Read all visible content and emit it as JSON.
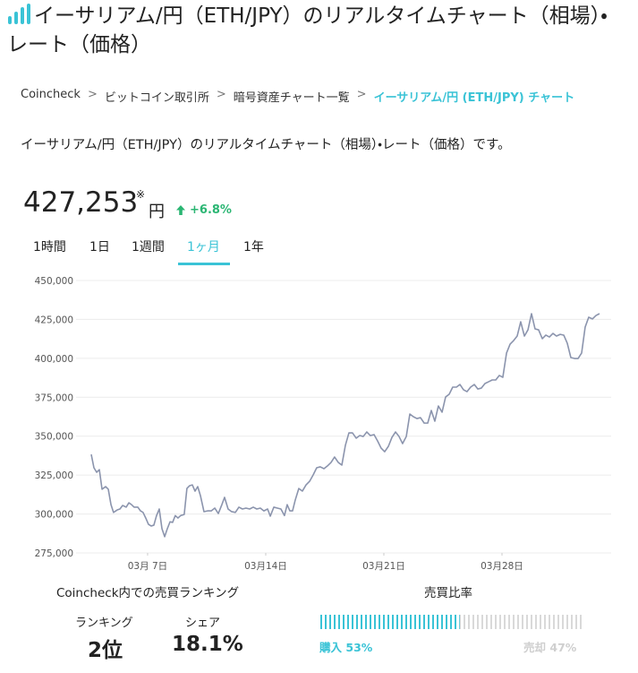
{
  "header": {
    "title": "イーサリアム/円（ETH/JPY）のリアルタイムチャート（相場）・レート（価格）"
  },
  "breadcrumb": {
    "separator": ">",
    "items": [
      "Coincheck",
      "ビットコイン取引所",
      "暗号資産チャート一覧",
      "イーサリアム/円 (ETH/JPY) チャート"
    ]
  },
  "description": "イーサリアム/円（ETH/JPY）のリアルタイムチャート（相場）・レート（価格）です。",
  "price": {
    "value": "427,253",
    "note_mark": "※",
    "unit": "円",
    "change": "+6.8%"
  },
  "tabs": {
    "items": [
      "1時間",
      "1日",
      "1週間",
      "1ヶ月",
      "1年"
    ],
    "active": 3
  },
  "chart_data": {
    "type": "line",
    "color": "#8b94ad",
    "grid": true,
    "xlim": [
      2.76,
      34.47
    ],
    "ylim": [
      275000,
      450000
    ],
    "xticks": [
      {
        "value": 7,
        "label": "03月 7日"
      },
      {
        "value": 14,
        "label": "03月14日"
      },
      {
        "value": 21,
        "label": "03月21日"
      },
      {
        "value": 28,
        "label": "03月28日"
      }
    ],
    "yticks": [
      {
        "value": 275000,
        "label": "275,000"
      },
      {
        "value": 300000,
        "label": "300,000"
      },
      {
        "value": 325000,
        "label": "325,000"
      },
      {
        "value": 350000,
        "label": "350,000"
      },
      {
        "value": 375000,
        "label": "375,000"
      },
      {
        "value": 400000,
        "label": "400,000"
      },
      {
        "value": 425000,
        "label": "425,000"
      },
      {
        "value": 450000,
        "label": "450,000"
      }
    ],
    "x": [
      3.66,
      3.82,
      3.98,
      4.14,
      4.3,
      4.51,
      4.67,
      4.83,
      4.98,
      5.2,
      5.36,
      5.52,
      5.73,
      5.89,
      6.05,
      6.2,
      6.42,
      6.58,
      6.73,
      6.89,
      7.05,
      7.21,
      7.37,
      7.53,
      7.69,
      7.85,
      8.01,
      8.17,
      8.33,
      8.48,
      8.64,
      8.8,
      8.96,
      9.17,
      9.33,
      9.49,
      9.65,
      9.81,
      9.97,
      10.13,
      10.34,
      10.55,
      10.77,
      10.98,
      11.19,
      11.4,
      11.56,
      11.77,
      11.98,
      12.2,
      12.41,
      12.62,
      12.83,
      13.05,
      13.26,
      13.47,
      13.68,
      13.89,
      14.11,
      14.27,
      14.48,
      14.69,
      14.9,
      15.11,
      15.27,
      15.43,
      15.59,
      15.75,
      15.96,
      16.17,
      16.39,
      16.6,
      16.81,
      17.02,
      17.23,
      17.45,
      17.66,
      17.87,
      18.08,
      18.3,
      18.51,
      18.72,
      18.93,
      19.14,
      19.36,
      19.57,
      19.78,
      19.99,
      20.2,
      20.42,
      20.63,
      20.84,
      21.05,
      21.27,
      21.48,
      21.69,
      21.9,
      22.11,
      22.33,
      22.54,
      22.75,
      22.96,
      23.17,
      23.39,
      23.6,
      23.81,
      24.02,
      24.23,
      24.45,
      24.66,
      24.87,
      25.08,
      25.3,
      25.51,
      25.72,
      25.93,
      26.14,
      26.36,
      26.57,
      26.78,
      26.99,
      27.2,
      27.42,
      27.63,
      27.84,
      28.05,
      28.27,
      28.48,
      28.69,
      28.9,
      29.11,
      29.33,
      29.54,
      29.75,
      29.96,
      30.17,
      30.39,
      30.6,
      30.81,
      31.02,
      31.23,
      31.45,
      31.66,
      31.87,
      32.08,
      32.3,
      32.51,
      32.72,
      32.93,
      33.14,
      33.36,
      33.57,
      33.78
    ],
    "values": [
      338300,
      329700,
      326800,
      328500,
      315900,
      317600,
      315900,
      306000,
      301000,
      302600,
      303200,
      305500,
      304400,
      307200,
      306000,
      304400,
      304400,
      302000,
      301000,
      297400,
      293400,
      292300,
      292800,
      299000,
      303200,
      290600,
      285400,
      290600,
      295000,
      294600,
      299000,
      297400,
      299000,
      299700,
      316400,
      318200,
      318700,
      314700,
      317600,
      311800,
      301500,
      302000,
      302000,
      303800,
      300300,
      306000,
      310700,
      303200,
      301500,
      301000,
      304400,
      303200,
      303800,
      303200,
      304400,
      303200,
      303800,
      302000,
      303200,
      298600,
      304400,
      303800,
      303200,
      299000,
      306000,
      302000,
      302000,
      309000,
      316400,
      314700,
      318700,
      321000,
      325100,
      329700,
      330300,
      329100,
      330900,
      333100,
      336600,
      333100,
      331400,
      344100,
      352100,
      352100,
      348700,
      350400,
      349800,
      352700,
      350400,
      351000,
      346900,
      342300,
      340000,
      343500,
      349200,
      352700,
      349800,
      345200,
      349800,
      364200,
      362500,
      361300,
      361900,
      358400,
      358400,
      366500,
      359600,
      369400,
      365400,
      375200,
      376900,
      381500,
      381500,
      383200,
      379800,
      378600,
      381500,
      383200,
      380300,
      380900,
      383800,
      384900,
      386100,
      386100,
      389000,
      387800,
      403400,
      409100,
      411400,
      414300,
      423500,
      414300,
      418300,
      428700,
      418900,
      418300,
      412600,
      414900,
      413700,
      416000,
      414300,
      415400,
      414900,
      409700,
      400500,
      399900,
      399900,
      403400,
      420100,
      426400,
      425300,
      427500,
      428700
    ]
  },
  "ranking": {
    "title": "Coincheck内での売買ランキング",
    "rank_label": "ランキング",
    "rank": "2位",
    "share_label": "シェア",
    "share": "18.1%"
  },
  "trade_ratio": {
    "title": "売買比率",
    "buy_label": "購入",
    "buy": 53,
    "buy_value_label": "53%",
    "sell_label": "売却",
    "sell": 47,
    "sell_value_label": "47%"
  }
}
